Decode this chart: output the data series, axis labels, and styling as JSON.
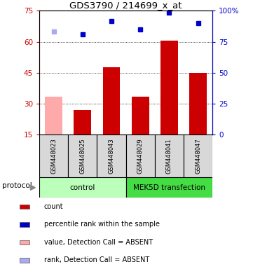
{
  "title": "GDS3790 / 214699_x_at",
  "samples": [
    "GSM448023",
    "GSM448025",
    "GSM448043",
    "GSM448029",
    "GSM448041",
    "GSM448047"
  ],
  "bar_values": [
    33.5,
    27.0,
    47.5,
    33.5,
    60.5,
    45.0
  ],
  "bar_colors": [
    "#ffaaaa",
    "#cc0000",
    "#cc0000",
    "#cc0000",
    "#cc0000",
    "#cc0000"
  ],
  "dot_values": [
    65.0,
    63.5,
    70.0,
    66.0,
    74.0,
    69.0
  ],
  "dot_colors": [
    "#aaaaee",
    "#0000cc",
    "#0000cc",
    "#0000cc",
    "#0000cc",
    "#0000cc"
  ],
  "ylim_left": [
    15,
    75
  ],
  "ylim_right": [
    0,
    100
  ],
  "yticks_left": [
    15,
    30,
    45,
    60,
    75
  ],
  "yticks_right": [
    0,
    25,
    50,
    75,
    100
  ],
  "ytick_labels_right": [
    "0",
    "25",
    "50",
    "75",
    "100%"
  ],
  "grid_values": [
    30,
    45,
    60
  ],
  "control_label": "control",
  "mek5d_label": "MEK5D transfection",
  "protocol_label": "protocol",
  "legend_items": [
    {
      "color": "#cc0000",
      "label": "count"
    },
    {
      "color": "#0000cc",
      "label": "percentile rank within the sample"
    },
    {
      "color": "#ffaaaa",
      "label": "value, Detection Call = ABSENT"
    },
    {
      "color": "#aaaaee",
      "label": "rank, Detection Call = ABSENT"
    }
  ],
  "sample_box_color": "#d8d8d8",
  "control_box_color": "#bbffbb",
  "mek5d_box_color": "#44dd44",
  "left_axis_color": "#cc0000",
  "right_axis_color": "#0000cc",
  "bar_bottom": 15
}
